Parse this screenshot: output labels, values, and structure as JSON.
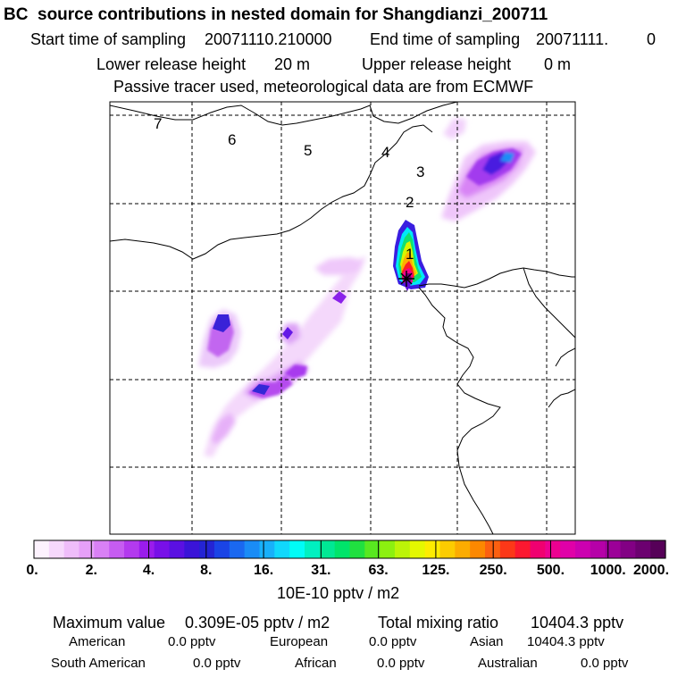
{
  "header": {
    "title": "BC  source contributions in nested domain for Shangdianzi_200711",
    "start_label": "Start time of sampling",
    "start_value": "20071110.210000",
    "end_label": "End time of sampling",
    "end_value": "20071111.",
    "end_suffix": "0",
    "lower_label": "Lower release height",
    "lower_value": "20 m",
    "upper_label": "Upper release height",
    "upper_value": "0 m",
    "tracer_note": "Passive tracer used, meteorological data are from ECMWF"
  },
  "map": {
    "markers": [
      "1",
      "2",
      "3",
      "4",
      "5",
      "6",
      "7"
    ],
    "release_site": "Shangdianzi",
    "colors": {
      "frame": "#000000",
      "grid": "#000000",
      "coast": "#000000"
    }
  },
  "legend": {
    "unit": "10E-10 pptv / m2",
    "labels": [
      "0.",
      "2.",
      "4.",
      "8.",
      "16.",
      "31.",
      "63.",
      "125.",
      "250.",
      "500.",
      "1000.",
      "2000."
    ],
    "colors": [
      "#fdf2fe",
      "#f6d8fc",
      "#efbdfa",
      "#e6a0f8",
      "#d980f5",
      "#c65cf1",
      "#b33aee",
      "#9a1cec",
      "#7810e8",
      "#5a10e2",
      "#3a14d8",
      "#2424d4",
      "#1a44e6",
      "#1a68f0",
      "#1a8cf6",
      "#18b0fa",
      "#10d8fc",
      "#00fcf6",
      "#00f0c0",
      "#00e894",
      "#00e46a",
      "#20e040",
      "#58e820",
      "#8cf010",
      "#bcf408",
      "#e4f800",
      "#fcec00",
      "#fccc00",
      "#fcac00",
      "#fc8800",
      "#fc6010",
      "#fc3818",
      "#fc1830",
      "#f00070",
      "#ec0090",
      "#e000a8",
      "#cc00b0",
      "#b600a8",
      "#9c0098",
      "#820084",
      "#6c0070",
      "#560058"
    ]
  },
  "stats": {
    "max_label": "Maximum value",
    "max_value": "0.309E-05 pptv / m2",
    "total_label": "Total mixing ratio",
    "total_value": "10404.3 pptv",
    "regions": [
      {
        "name": "American",
        "value": "0.0 pptv"
      },
      {
        "name": "European",
        "value": "0.0 pptv"
      },
      {
        "name": "Asian",
        "value": "10404.3 pptv"
      },
      {
        "name": "South American",
        "value": "0.0 pptv"
      },
      {
        "name": "African",
        "value": "0.0 pptv"
      },
      {
        "name": "Australian",
        "value": "0.0 pptv"
      }
    ]
  }
}
